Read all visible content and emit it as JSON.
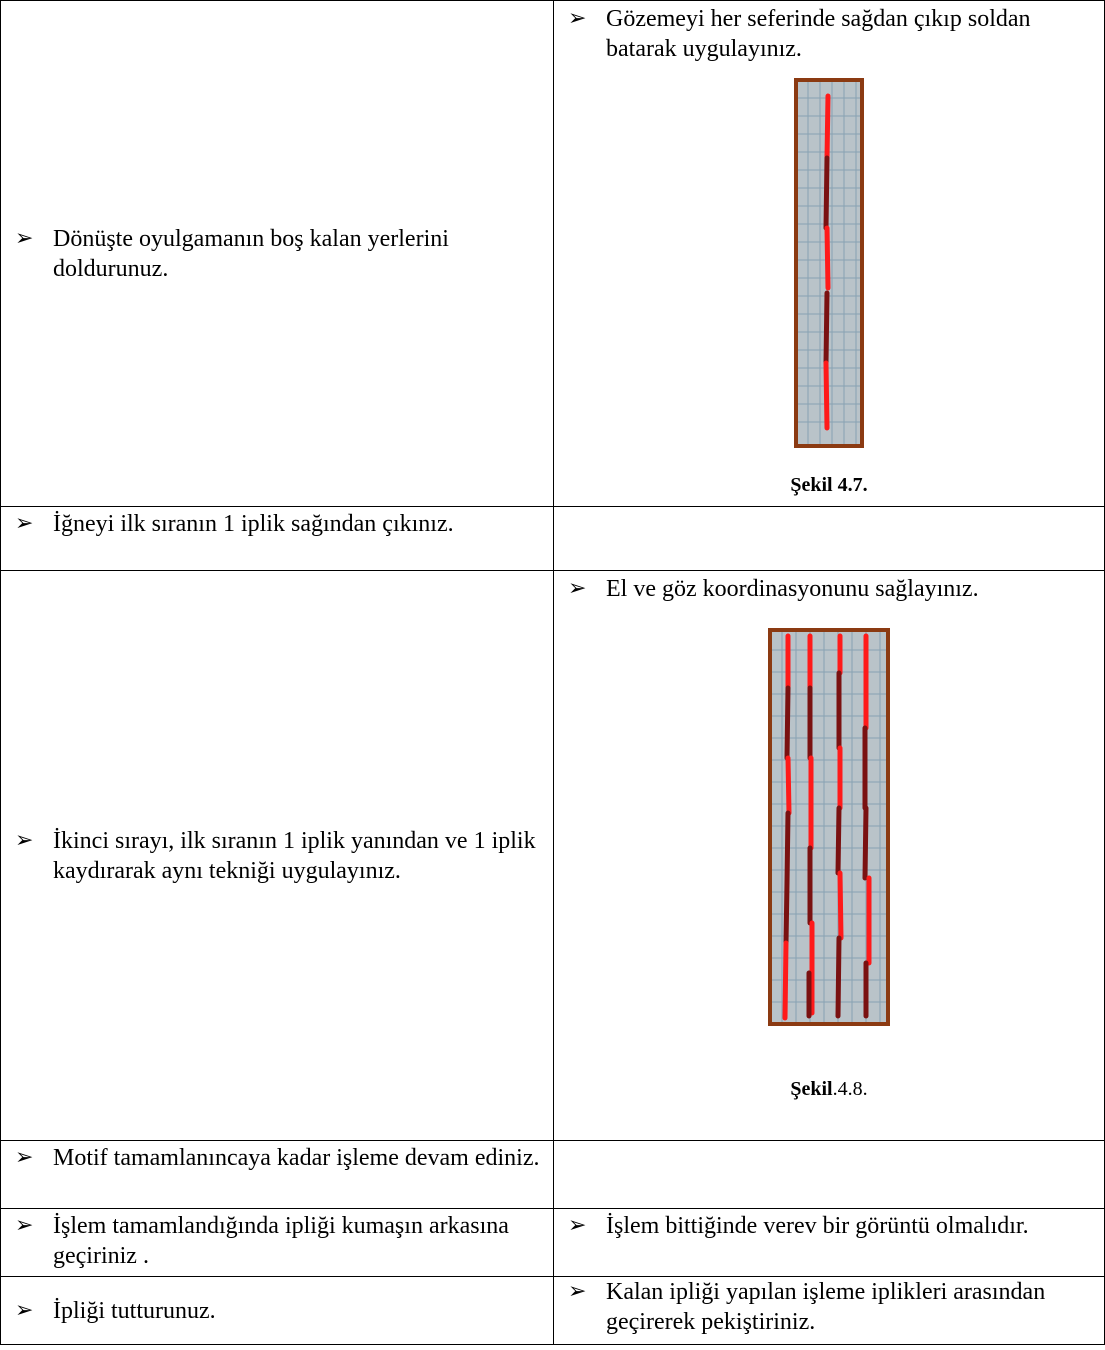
{
  "rows": [
    {
      "left": "Dönüşte oyulgamanın boş kalan yerlerini doldurunuz.",
      "right": "Gözemeyi her seferinde sağdan çıkıp soldan batarak uygulayınız.",
      "figure_caption": "Şekil 4.7."
    },
    {
      "left": "İğneyi ilk sıranın 1 iplik sağından çıkınız.",
      "right": ""
    },
    {
      "left": "İkinci sırayı, ilk sıranın 1 iplik yanından ve 1 iplik kaydırarak aynı tekniği uygulayınız.",
      "right": "El ve göz koordinasyonunu sağlayınız.",
      "figure_caption_bold": "Şekil",
      "figure_caption_plain": ".4.8."
    },
    {
      "left": "Motif tamamlanıncaya kadar işleme devam ediniz.",
      "right": ""
    },
    {
      "left": "İşlem tamamlandığında ipliği kumaşın arkasına geçiriniz .",
      "right": "İşlem bittiğinde verev bir görüntü olmalıdır."
    },
    {
      "left": "İpliği tutturunuz.",
      "right": "Kalan ipliği yapılan işleme iplikleri arasından geçirerek pekiştiriniz."
    }
  ],
  "bullet_icon": "arrowhead-bullet-icon",
  "colors": {
    "frame": "#8b3a12",
    "fabric": "#b9c3c9",
    "thread_front": "#ff1a1a",
    "thread_back": "#7a1111"
  }
}
